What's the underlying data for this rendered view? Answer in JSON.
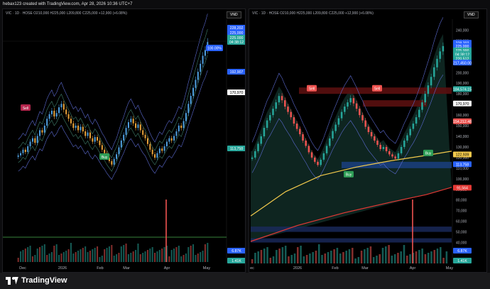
{
  "header": {
    "text": "hebax123 created with TradingView.com, Apr 28, 2026 10:36 UTC+7"
  },
  "brand": {
    "name": "TradingView"
  },
  "colors": {
    "up": "#26a69a",
    "down": "#ef5350",
    "bb": "#5b6ad0",
    "ma_yellow": "#f2c94c",
    "ma_red": "#e53935",
    "label_blue": "#2962ff"
  },
  "chart_data": [
    {
      "type": "candlestick",
      "panel": "left",
      "symbol_line": "VIC · 1D · HOSE  O210,000  H225,000  L209,800  C225,000  +12,900 (+6.08%)",
      "currency": "VND",
      "ylim": [
        85000,
        240000
      ],
      "x_labels": [
        "Dec",
        "2026",
        "Feb",
        "Mar",
        "Apr",
        "May"
      ],
      "price_labels": [
        "228,202",
        "225,000",
        "225,000",
        "04:38:12",
        "192,907",
        "170,970",
        "113,758",
        "6.87K",
        "1.41K"
      ],
      "annotation": "100.00%",
      "signals": [
        "Sell",
        "Buy"
      ],
      "volume_labels": [
        "6.87K",
        "1.41K"
      ],
      "closes": [
        126000,
        128000,
        131000,
        129000,
        134000,
        138000,
        141000,
        137000,
        143000,
        148000,
        146000,
        152000,
        158000,
        162000,
        165000,
        160000,
        163000,
        168000,
        171000,
        166000,
        162000,
        158000,
        154000,
        150000,
        152000,
        148000,
        151000,
        147000,
        143000,
        146000,
        141000,
        138000,
        142000,
        139000,
        135000,
        131000,
        128000,
        124000,
        121000,
        118000,
        123000,
        127000,
        133000,
        139000,
        144000,
        150000,
        155000,
        158000,
        154000,
        150000,
        153000,
        148000,
        144000,
        141000,
        136000,
        131000,
        127000,
        124000,
        128000,
        132000,
        130000,
        134000,
        138000,
        141000,
        139000,
        143000,
        147000,
        152000,
        150000,
        156000,
        163000,
        171000,
        178000,
        185000,
        192000,
        199000,
        206000,
        213000,
        218000,
        225000
      ]
    },
    {
      "type": "candlestick",
      "panel": "right",
      "symbol_line": "VIC · 1D · HOSE  O210,000  H225,000  L209,800  C225,000  +12,900 (+6.08%)",
      "currency": "VND",
      "ylim": [
        35000,
        245000
      ],
      "x_labels": [
        "ec",
        "2026",
        "Feb",
        "Mar",
        "Apr",
        "May"
      ],
      "y_ticks": [
        240000,
        230000,
        220000,
        210000,
        200000,
        190000,
        180000,
        170000,
        160000,
        150000,
        140000,
        130000,
        120000,
        110000,
        100000,
        90000,
        80000,
        70000,
        60000,
        50000,
        40000
      ],
      "y_tick_labels": [
        "240,000",
        "230,000",
        "220,000",
        "210,000",
        "200,000",
        "190,000",
        "180,000",
        "170,000",
        "160,000",
        "150,000",
        "140,000",
        "130,000",
        "120,000",
        "110,000",
        "100,000",
        "90,000",
        "80,000",
        "70,000",
        "60,000",
        "50,000",
        "40,000"
      ],
      "price_labels": [
        "228,202",
        "225,000",
        "225,000",
        "04:38:12",
        "220,512",
        "217,450.00",
        "184,574.15",
        "170,970",
        "154,212.48",
        "122,939",
        "113,758",
        "91,564",
        "6.87K",
        "1.41K"
      ],
      "signals": [
        "Sell",
        "Sell",
        "Buy",
        "Buy"
      ],
      "closes": [
        120000,
        126000,
        133000,
        140000,
        148000,
        155000,
        160000,
        166000,
        172000,
        178000,
        174000,
        168000,
        163000,
        158000,
        152000,
        147000,
        142000,
        136000,
        131000,
        125000,
        120000,
        116000,
        113000,
        118000,
        124000,
        131000,
        138000,
        145000,
        151000,
        157000,
        163000,
        168000,
        172000,
        176000,
        171000,
        166000,
        160000,
        155000,
        149000,
        144000,
        140000,
        136000,
        132000,
        128000,
        130000,
        126000,
        123000,
        121000,
        119000,
        124000,
        130000,
        136000,
        141000,
        147000,
        152000,
        158000,
        165000,
        172000,
        180000,
        188000,
        196000,
        205000,
        213000,
        220000,
        225000
      ],
      "ma_yellow": [
        [
          0,
          65000
        ],
        [
          30,
          88000
        ],
        [
          60,
          103000
        ],
        [
          90,
          111000
        ],
        [
          120,
          117000
        ],
        [
          150,
          122000
        ],
        [
          172,
          126000
        ]
      ],
      "ma_red": [
        [
          0,
          41000
        ],
        [
          40,
          56000
        ],
        [
          80,
          68000
        ],
        [
          120,
          78000
        ],
        [
          150,
          85000
        ],
        [
          172,
          92000
        ]
      ]
    }
  ]
}
